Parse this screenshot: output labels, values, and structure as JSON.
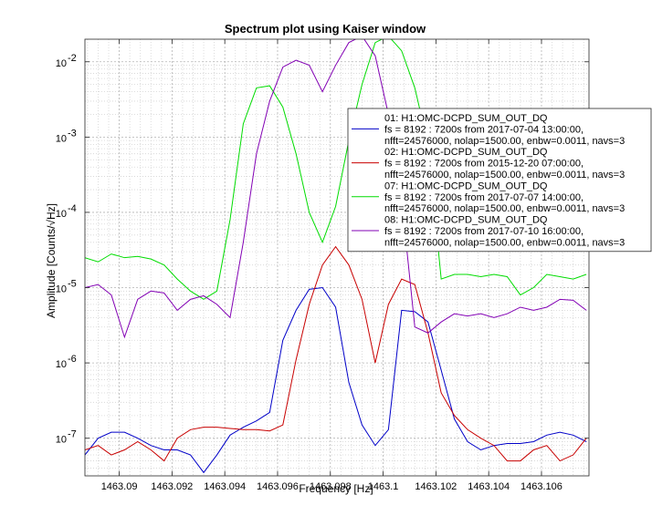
{
  "chart_data": {
    "type": "line",
    "title": "Spectrum plot using Kaiser window",
    "xlabel": "Frequency [Hz]",
    "ylabel": "Amplitude [Counts/√Hz]",
    "xlim": [
      1463.0887,
      1463.1078
    ],
    "ylim_log10": [
      -7.5,
      -1.7
    ],
    "yscale": "log",
    "grid": true,
    "x_ticks": [
      1463.09,
      1463.092,
      1463.094,
      1463.096,
      1463.098,
      1463.1,
      1463.102,
      1463.104,
      1463.106
    ],
    "x_tick_labels": [
      "1463.09",
      "1463.092",
      "1463.094",
      "1463.096",
      "1463.098",
      "1463.1",
      "1463.102",
      "1463.104",
      "1463.106"
    ],
    "y_ticks": [
      -7,
      -6,
      -5,
      -4,
      -3,
      -2
    ],
    "y_tick_labels": [
      "10",
      "10",
      "10",
      "10",
      "10",
      "10"
    ],
    "y_tick_exponents": [
      "-7",
      "-6",
      "-5",
      "-4",
      "-3",
      "-2"
    ],
    "legend_position": "top-right",
    "series": [
      {
        "name": "01: H1:OMC-DCPD_SUM_OUT_DQ",
        "detail1": "fs = 8192 : 7200s from 2017-07-04 13:00:00,",
        "detail2": "nfft=24576000, nolap=1500.00, enbw=0.0011, navs=3",
        "color": "#0000c8",
        "x": [
          1463.0887,
          1463.0892,
          1463.0897,
          1463.0902,
          1463.0907,
          1463.0912,
          1463.0917,
          1463.0922,
          1463.0927,
          1463.0932,
          1463.0937,
          1463.0942,
          1463.0947,
          1463.0952,
          1463.0957,
          1463.0962,
          1463.0967,
          1463.0972,
          1463.0977,
          1463.0982,
          1463.0987,
          1463.0992,
          1463.0997,
          1463.1002,
          1463.1007,
          1463.1012,
          1463.1017,
          1463.1022,
          1463.1027,
          1463.1032,
          1463.1037,
          1463.1042,
          1463.1047,
          1463.1052,
          1463.1057,
          1463.1062,
          1463.1067,
          1463.1072,
          1463.1077
        ],
        "y": [
          6e-08,
          1e-07,
          1.2e-07,
          1.2e-07,
          1e-07,
          8e-08,
          7e-08,
          7e-08,
          6e-08,
          3.5e-08,
          6e-08,
          1.1e-07,
          1.4e-07,
          1.7e-07,
          2.2e-07,
          2e-06,
          5e-06,
          9.5e-06,
          1e-05,
          5.5e-06,
          5.5e-07,
          1.5e-07,
          8e-08,
          1.3e-07,
          5e-06,
          4.8e-06,
          3.5e-06,
          8e-07,
          1.8e-07,
          9e-08,
          7e-08,
          8e-08,
          8.5e-08,
          8.5e-08,
          9e-08,
          1.1e-07,
          1.2e-07,
          1.1e-07,
          9e-08
        ]
      },
      {
        "name": "02: H1:OMC-DCPD_SUM_OUT_DQ",
        "detail1": "fs = 8192 : 7200s from 2015-12-20 07:00:00,",
        "detail2": "nfft=24576000, nolap=1500.00, enbw=0.0011, navs=3",
        "color": "#c80000",
        "x": [
          1463.0887,
          1463.0892,
          1463.0897,
          1463.0902,
          1463.0907,
          1463.0912,
          1463.0917,
          1463.0922,
          1463.0927,
          1463.0932,
          1463.0937,
          1463.0942,
          1463.0947,
          1463.0952,
          1463.0957,
          1463.0962,
          1463.0967,
          1463.0972,
          1463.0977,
          1463.0982,
          1463.0987,
          1463.0992,
          1463.0997,
          1463.1002,
          1463.1007,
          1463.1012,
          1463.1017,
          1463.1022,
          1463.1027,
          1463.1032,
          1463.1037,
          1463.1042,
          1463.1047,
          1463.1052,
          1463.1057,
          1463.1062,
          1463.1067,
          1463.1072,
          1463.1077
        ],
        "y": [
          7e-08,
          8e-08,
          6e-08,
          7e-08,
          9e-08,
          7e-08,
          5e-08,
          1e-07,
          1.3e-07,
          1.4e-07,
          1.4e-07,
          1.35e-07,
          1.3e-07,
          1.3e-07,
          1.25e-07,
          1.5e-07,
          1.1e-06,
          6e-06,
          2e-05,
          3.5e-05,
          2e-05,
          7e-06,
          1e-06,
          6e-06,
          1.3e-05,
          1.1e-05,
          2.5e-06,
          4e-07,
          2e-07,
          1.3e-07,
          1e-07,
          8e-08,
          5e-08,
          5e-08,
          7e-08,
          8e-08,
          5e-08,
          6e-08,
          1e-07
        ]
      },
      {
        "name": "07: H1:OMC-DCPD_SUM_OUT_DQ",
        "detail1": "fs = 8192 : 7200s from 2017-07-07 14:00:00,",
        "detail2": "nfft=24576000, nolap=1500.00, enbw=0.0011, navs=3",
        "color": "#00dc00",
        "x": [
          1463.0887,
          1463.0892,
          1463.0897,
          1463.0902,
          1463.0907,
          1463.0912,
          1463.0917,
          1463.0922,
          1463.0927,
          1463.0932,
          1463.0937,
          1463.0942,
          1463.0947,
          1463.0952,
          1463.0957,
          1463.0962,
          1463.0967,
          1463.0972,
          1463.0977,
          1463.0982,
          1463.0987,
          1463.0992,
          1463.0997,
          1463.1002,
          1463.1007,
          1463.1012,
          1463.1017,
          1463.1022,
          1463.1027,
          1463.1032,
          1463.1037,
          1463.1042,
          1463.1047,
          1463.1052,
          1463.1057,
          1463.1062,
          1463.1067,
          1463.1072,
          1463.1077
        ],
        "y": [
          2.5e-05,
          2.2e-05,
          2.8e-05,
          2.5e-05,
          2.6e-05,
          2.4e-05,
          2e-05,
          1.3e-05,
          9e-06,
          7e-06,
          9e-06,
          8e-05,
          0.0015,
          0.0045,
          0.0048,
          0.0025,
          0.0006,
          0.0001,
          4e-05,
          0.00012,
          0.0009,
          0.005,
          0.018,
          0.022,
          0.014,
          0.0045,
          0.0008,
          1.3e-05,
          1.5e-05,
          1.5e-05,
          1.4e-05,
          1.5e-05,
          1.4e-05,
          8e-06,
          1e-05,
          1.5e-05,
          1.4e-05,
          1.3e-05,
          1.5e-05
        ]
      },
      {
        "name": "08: H1:OMC-DCPD_SUM_OUT_DQ",
        "detail1": "fs = 8192 : 7200s from 2017-07-10 16:00:00,",
        "detail2": "nfft=24576000, nolap=1500.00, enbw=0.0011, navs=3",
        "color": "#8200b4",
        "x": [
          1463.0887,
          1463.0892,
          1463.0897,
          1463.0902,
          1463.0907,
          1463.0912,
          1463.0917,
          1463.0922,
          1463.0927,
          1463.0932,
          1463.0937,
          1463.0942,
          1463.0947,
          1463.0952,
          1463.0957,
          1463.0962,
          1463.0967,
          1463.0972,
          1463.0977,
          1463.0982,
          1463.0987,
          1463.0992,
          1463.0997,
          1463.1002,
          1463.1007,
          1463.1012,
          1463.1017,
          1463.1022,
          1463.1027,
          1463.1032,
          1463.1037,
          1463.1042,
          1463.1047,
          1463.1052,
          1463.1057,
          1463.1062,
          1463.1067,
          1463.1072,
          1463.1077
        ],
        "y": [
          1e-05,
          1.1e-05,
          8e-06,
          2.2e-06,
          7e-06,
          9e-06,
          8.5e-06,
          5e-06,
          7e-06,
          7.8e-06,
          6e-06,
          4e-06,
          4e-05,
          0.0006,
          0.003,
          0.0085,
          0.0105,
          0.009,
          0.004,
          0.009,
          0.018,
          0.022,
          0.012,
          0.002,
          0.00015,
          3e-06,
          2.5e-06,
          3.5e-06,
          4.5e-06,
          4.2e-06,
          4.5e-06,
          4e-06,
          4.5e-06,
          5.5e-06,
          5e-06,
          5.5e-06,
          7e-06,
          6.8e-06,
          5e-06
        ]
      }
    ]
  }
}
